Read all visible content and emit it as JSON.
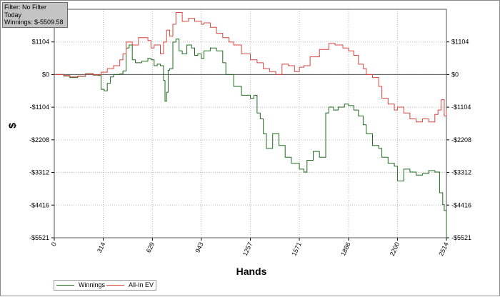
{
  "info_box": {
    "filter": "Filter: No Filter",
    "period": "Today",
    "winnings": "Winnings: $-5509.58"
  },
  "colors": {
    "winnings": "#1f6b1f",
    "all_in_ev": "#d9443f",
    "zero_line": "#555555",
    "grid": "#b8b8b8",
    "info_box_bg": "#c4c4c4"
  },
  "chart_data": {
    "type": "line",
    "title": "",
    "xlabel": "Hands",
    "ylabel": "$",
    "xlim": [
      0,
      2514
    ],
    "ylim": [
      -5521,
      2208
    ],
    "x_ticks": [
      0,
      314,
      629,
      943,
      1257,
      1571,
      1886,
      2200,
      2514
    ],
    "y_ticks": [
      -5521,
      -4416,
      -3312,
      -2208,
      -1104,
      0,
      1104
    ],
    "y_tick_labels": [
      "-$5521",
      "-$4416",
      "-$3312",
      "-$2208",
      "-$1104",
      "$0",
      "$1104"
    ],
    "grid": true,
    "legend_position": "bottom-left",
    "series": [
      {
        "name": "Winnings",
        "color": "#1f6b1f",
        "x": [
          0,
          60,
          100,
          150,
          200,
          250,
          280,
          300,
          320,
          340,
          360,
          380,
          420,
          440,
          460,
          480,
          500,
          520,
          560,
          600,
          620,
          640,
          660,
          680,
          700,
          710,
          720,
          730,
          740,
          760,
          780,
          800,
          820,
          850,
          880,
          900,
          920,
          943,
          960,
          1000,
          1040,
          1080,
          1100,
          1150,
          1200,
          1257,
          1280,
          1300,
          1320,
          1340,
          1360,
          1400,
          1440,
          1480,
          1520,
          1571,
          1600,
          1620,
          1660,
          1700,
          1740,
          1760,
          1790,
          1820,
          1860,
          1886,
          1920,
          1950,
          1980,
          2000,
          2040,
          2080,
          2100,
          2140,
          2180,
          2200,
          2240,
          2280,
          2320,
          2360,
          2400,
          2440,
          2470,
          2490,
          2500,
          2514
        ],
        "y": [
          0,
          -50,
          -100,
          -60,
          30,
          -20,
          -30,
          -500,
          -550,
          -300,
          -80,
          0,
          20,
          120,
          900,
          1000,
          500,
          400,
          450,
          550,
          500,
          300,
          350,
          300,
          -200,
          -900,
          -600,
          150,
          200,
          1100,
          1200,
          800,
          700,
          1000,
          900,
          650,
          700,
          550,
          800,
          900,
          800,
          400,
          0,
          -400,
          -700,
          -800,
          -700,
          -1300,
          -1500,
          -2000,
          -2500,
          -2000,
          -2400,
          -2800,
          -3000,
          -3200,
          -3300,
          -2900,
          -2600,
          -2800,
          -1300,
          -1100,
          -1200,
          -1100,
          -1000,
          -1050,
          -1200,
          -1400,
          -1700,
          -2000,
          -2400,
          -2500,
          -2800,
          -3000,
          -3100,
          -3600,
          -3200,
          -3300,
          -3400,
          -3350,
          -3250,
          -3300,
          -4000,
          -4400,
          -4600,
          -5509.58
        ]
      },
      {
        "name": "All-In EV",
        "color": "#d9443f",
        "x": [
          0,
          60,
          100,
          150,
          200,
          250,
          300,
          340,
          380,
          420,
          440,
          460,
          500,
          540,
          600,
          620,
          640,
          680,
          700,
          720,
          740,
          760,
          780,
          820,
          860,
          900,
          943,
          960,
          1000,
          1040,
          1080,
          1120,
          1150,
          1200,
          1257,
          1300,
          1340,
          1380,
          1420,
          1460,
          1500,
          1540,
          1571,
          1600,
          1640,
          1700,
          1760,
          1800,
          1850,
          1886,
          1920,
          1950,
          1980,
          2000,
          2040,
          2080,
          2100,
          2140,
          2180,
          2200,
          2240,
          2280,
          2320,
          2360,
          2400,
          2440,
          2460,
          2480,
          2500,
          2514
        ],
        "y": [
          0,
          -30,
          -80,
          -50,
          20,
          -10,
          80,
          200,
          300,
          500,
          700,
          1100,
          1000,
          1250,
          1150,
          900,
          1000,
          700,
          1100,
          1500,
          1300,
          1700,
          2100,
          1800,
          1900,
          1800,
          1700,
          1750,
          1600,
          1400,
          1250,
          1100,
          1000,
          700,
          500,
          400,
          200,
          100,
          0,
          350,
          300,
          100,
          250,
          300,
          600,
          850,
          1050,
          1000,
          900,
          800,
          650,
          350,
          200,
          0,
          -100,
          -400,
          -800,
          -1000,
          -1200,
          -1100,
          -1300,
          -1500,
          -1600,
          -1500,
          -1600,
          -1350,
          -1200,
          -850,
          -1400,
          -1200
        ]
      }
    ]
  }
}
